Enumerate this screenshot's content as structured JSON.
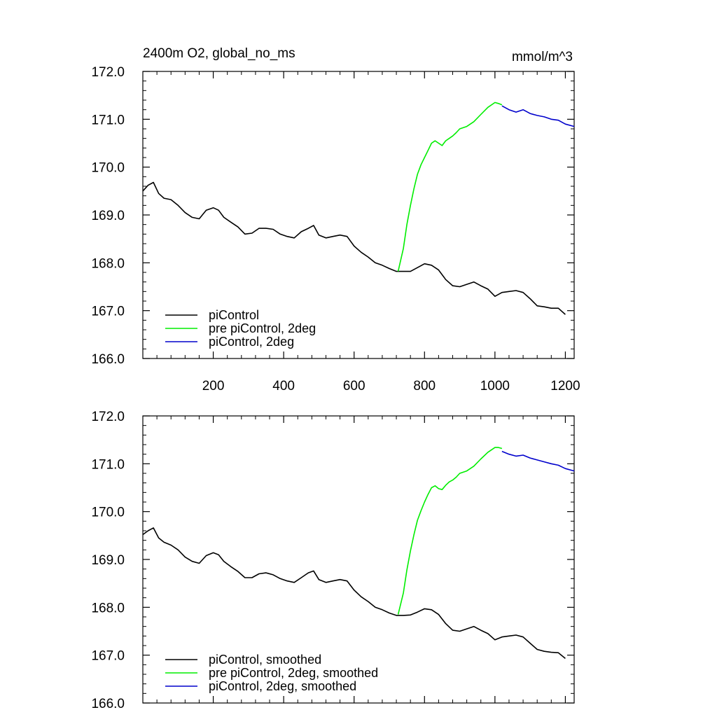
{
  "figure": {
    "title_left": "2400m O2, global_no_ms",
    "title_right": "mmol/m^3"
  },
  "colors": {
    "piControl": "#000000",
    "pre_piControl_2deg": "#00ee00",
    "piControl_2deg": "#0000cc",
    "axis": "#000000"
  },
  "chart_data": [
    {
      "type": "line",
      "title": "2400m O2, global_no_ms",
      "units": "mmol/m^3",
      "xlabel": "",
      "ylabel": "",
      "xlim": [
        0,
        1225
      ],
      "ylim": [
        166.0,
        172.0
      ],
      "x_ticks": [
        200,
        400,
        600,
        800,
        1000,
        1200
      ],
      "x_tick_labels": [
        "200",
        "400",
        "600",
        "800",
        "1000",
        "1200"
      ],
      "y_ticks": [
        166.0,
        167.0,
        168.0,
        169.0,
        170.0,
        171.0,
        172.0
      ],
      "y_tick_labels": [
        "166.0",
        "167.0",
        "168.0",
        "169.0",
        "170.0",
        "171.0",
        "172.0"
      ],
      "grid": false,
      "legend_position": "bottom-left",
      "series": [
        {
          "name": "piControl",
          "color": "#000000",
          "x": [
            0,
            15,
            30,
            45,
            60,
            80,
            100,
            120,
            140,
            160,
            180,
            200,
            215,
            230,
            250,
            270,
            290,
            310,
            330,
            350,
            370,
            390,
            410,
            430,
            450,
            470,
            485,
            500,
            520,
            540,
            560,
            580,
            600,
            620,
            640,
            660,
            680,
            700,
            720,
            740,
            760,
            780,
            800,
            820,
            840,
            860,
            880,
            900,
            920,
            940,
            960,
            980,
            1000,
            1020,
            1040,
            1060,
            1080,
            1100,
            1120,
            1140,
            1160,
            1180,
            1200
          ],
          "y": [
            169.5,
            169.62,
            169.68,
            169.45,
            169.35,
            169.32,
            169.2,
            169.05,
            168.95,
            168.92,
            169.1,
            169.15,
            169.1,
            168.95,
            168.85,
            168.75,
            168.6,
            168.62,
            168.72,
            168.72,
            168.7,
            168.6,
            168.55,
            168.52,
            168.65,
            168.72,
            168.78,
            168.58,
            168.52,
            168.55,
            168.58,
            168.55,
            168.35,
            168.22,
            168.12,
            168.0,
            167.95,
            167.88,
            167.82,
            167.82,
            167.82,
            167.9,
            167.98,
            167.95,
            167.85,
            167.65,
            167.52,
            167.5,
            167.55,
            167.6,
            167.52,
            167.45,
            167.3,
            167.38,
            167.4,
            167.42,
            167.38,
            167.25,
            167.1,
            167.08,
            167.05,
            167.05,
            166.92
          ]
        },
        {
          "name": "pre piControl, 2deg",
          "color": "#00ee00",
          "x": [
            725,
            740,
            750,
            760,
            770,
            780,
            790,
            800,
            810,
            820,
            830,
            840,
            850,
            860,
            870,
            880,
            890,
            900,
            920,
            940,
            960,
            980,
            1000,
            1010,
            1020
          ],
          "y": [
            167.82,
            168.3,
            168.8,
            169.2,
            169.55,
            169.85,
            170.05,
            170.2,
            170.35,
            170.5,
            170.55,
            170.5,
            170.45,
            170.55,
            170.6,
            170.65,
            170.72,
            170.8,
            170.85,
            170.95,
            171.1,
            171.25,
            171.35,
            171.33,
            171.3
          ]
        },
        {
          "name": "piControl, 2deg",
          "color": "#0000cc",
          "x": [
            1020,
            1040,
            1060,
            1080,
            1100,
            1120,
            1140,
            1160,
            1180,
            1200,
            1225
          ],
          "y": [
            171.28,
            171.2,
            171.15,
            171.2,
            171.12,
            171.08,
            171.05,
            171.0,
            170.98,
            170.9,
            170.85
          ]
        }
      ]
    },
    {
      "type": "line",
      "title": "",
      "xlabel": "",
      "ylabel": "",
      "xlim": [
        0,
        1225
      ],
      "ylim": [
        166.0,
        172.0
      ],
      "x_ticks": [
        200,
        400,
        600,
        800,
        1000,
        1200
      ],
      "y_ticks": [
        166.0,
        167.0,
        168.0,
        169.0,
        170.0,
        171.0,
        172.0
      ],
      "y_tick_labels": [
        "166.0",
        "167.0",
        "168.0",
        "169.0",
        "170.0",
        "171.0",
        "172.0"
      ],
      "grid": false,
      "legend_position": "bottom-left",
      "series": [
        {
          "name": "piControl, smoothed",
          "color": "#000000",
          "x": [
            0,
            15,
            30,
            45,
            60,
            80,
            100,
            120,
            140,
            160,
            180,
            200,
            215,
            230,
            250,
            270,
            290,
            310,
            330,
            350,
            370,
            390,
            410,
            430,
            450,
            470,
            485,
            500,
            520,
            540,
            560,
            580,
            600,
            620,
            640,
            660,
            680,
            700,
            720,
            740,
            760,
            780,
            800,
            820,
            840,
            860,
            880,
            900,
            920,
            940,
            960,
            980,
            1000,
            1020,
            1040,
            1060,
            1080,
            1100,
            1120,
            1140,
            1160,
            1180,
            1200
          ],
          "y": [
            169.52,
            169.6,
            169.66,
            169.45,
            169.36,
            169.3,
            169.2,
            169.05,
            168.96,
            168.92,
            169.08,
            169.14,
            169.1,
            168.96,
            168.85,
            168.75,
            168.62,
            168.62,
            168.7,
            168.72,
            168.68,
            168.6,
            168.55,
            168.52,
            168.62,
            168.72,
            168.76,
            168.58,
            168.52,
            168.55,
            168.58,
            168.55,
            168.36,
            168.22,
            168.12,
            168.0,
            167.95,
            167.88,
            167.83,
            167.83,
            167.84,
            167.9,
            167.97,
            167.95,
            167.85,
            167.66,
            167.52,
            167.5,
            167.55,
            167.6,
            167.52,
            167.45,
            167.32,
            167.38,
            167.4,
            167.42,
            167.38,
            167.25,
            167.12,
            167.08,
            167.06,
            167.05,
            166.93
          ]
        },
        {
          "name": "pre piControl, 2deg, smoothed",
          "color": "#00ee00",
          "x": [
            725,
            740,
            750,
            760,
            770,
            780,
            790,
            800,
            810,
            820,
            830,
            840,
            850,
            860,
            870,
            880,
            890,
            900,
            920,
            940,
            960,
            980,
            1000,
            1010,
            1020
          ],
          "y": [
            167.85,
            168.3,
            168.78,
            169.18,
            169.52,
            169.82,
            170.02,
            170.2,
            170.36,
            170.5,
            170.54,
            170.48,
            170.46,
            170.55,
            170.62,
            170.66,
            170.72,
            170.8,
            170.85,
            170.95,
            171.1,
            171.24,
            171.34,
            171.34,
            171.32
          ]
        },
        {
          "name": "piControl, 2deg, smoothed",
          "color": "#0000cc",
          "x": [
            1020,
            1040,
            1060,
            1080,
            1100,
            1120,
            1140,
            1160,
            1180,
            1200,
            1225
          ],
          "y": [
            171.26,
            171.2,
            171.16,
            171.18,
            171.12,
            171.08,
            171.04,
            171.0,
            170.97,
            170.9,
            170.85
          ]
        }
      ]
    }
  ]
}
